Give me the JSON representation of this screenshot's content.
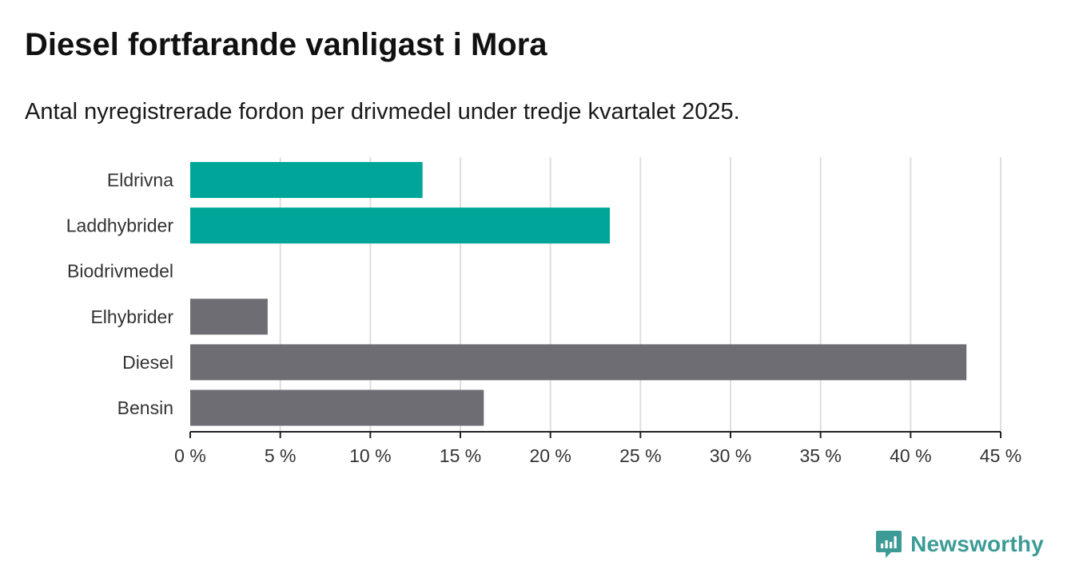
{
  "header": {
    "title": "Diesel fortfarande vanligast i Mora",
    "subtitle": "Antal nyregistrerade fordon per drivmedel under tredje kvartalet 2025."
  },
  "brand": {
    "name": "Newsworthy",
    "icon": "newsworthy-logo-icon",
    "color": "#3d9b96"
  },
  "chart_data": {
    "type": "bar",
    "orientation": "horizontal",
    "title": "Diesel fortfarande vanligast i Mora",
    "subtitle": "Antal nyregistrerade fordon per drivmedel under tredje kvartalet 2025.",
    "xlabel": "",
    "ylabel": "",
    "xlim": [
      0,
      45
    ],
    "ticks": [
      0,
      5,
      10,
      15,
      20,
      25,
      30,
      35,
      40,
      45
    ],
    "tick_suffix": " %",
    "grid": true,
    "categories": [
      "Eldrivna",
      "Laddhybrider",
      "Biodrivmedel",
      "Elhybrider",
      "Diesel",
      "Bensin"
    ],
    "values": [
      12.9,
      23.3,
      0,
      4.3,
      43.1,
      16.3
    ],
    "colors": [
      "#00a59a",
      "#00a59a",
      "#6e6d73",
      "#6e6d73",
      "#6e6d73",
      "#6e6d73"
    ],
    "unit": "%"
  }
}
